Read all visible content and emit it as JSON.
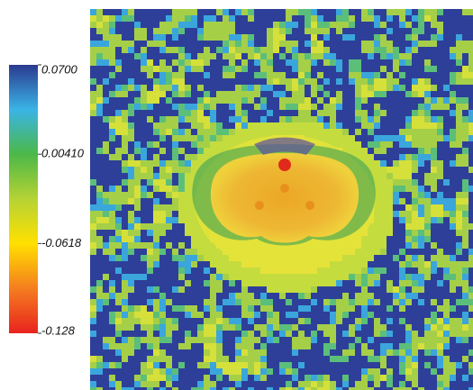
{
  "chart_data": {
    "type": "colorbar",
    "ylim": [
      -0.128,
      0.07
    ],
    "yticks": [
      {
        "value": 0.07,
        "label": "0.0700"
      },
      {
        "value": 0.0041,
        "label": "0.00410"
      },
      -0.0618,
      -0.128
    ],
    "colorscale": [
      "#e8231f",
      "#f57d1f",
      "#ffe000",
      "#b6d334",
      "#4cb848",
      "#3ab4e6",
      "#2b3a8f"
    ]
  }
}
